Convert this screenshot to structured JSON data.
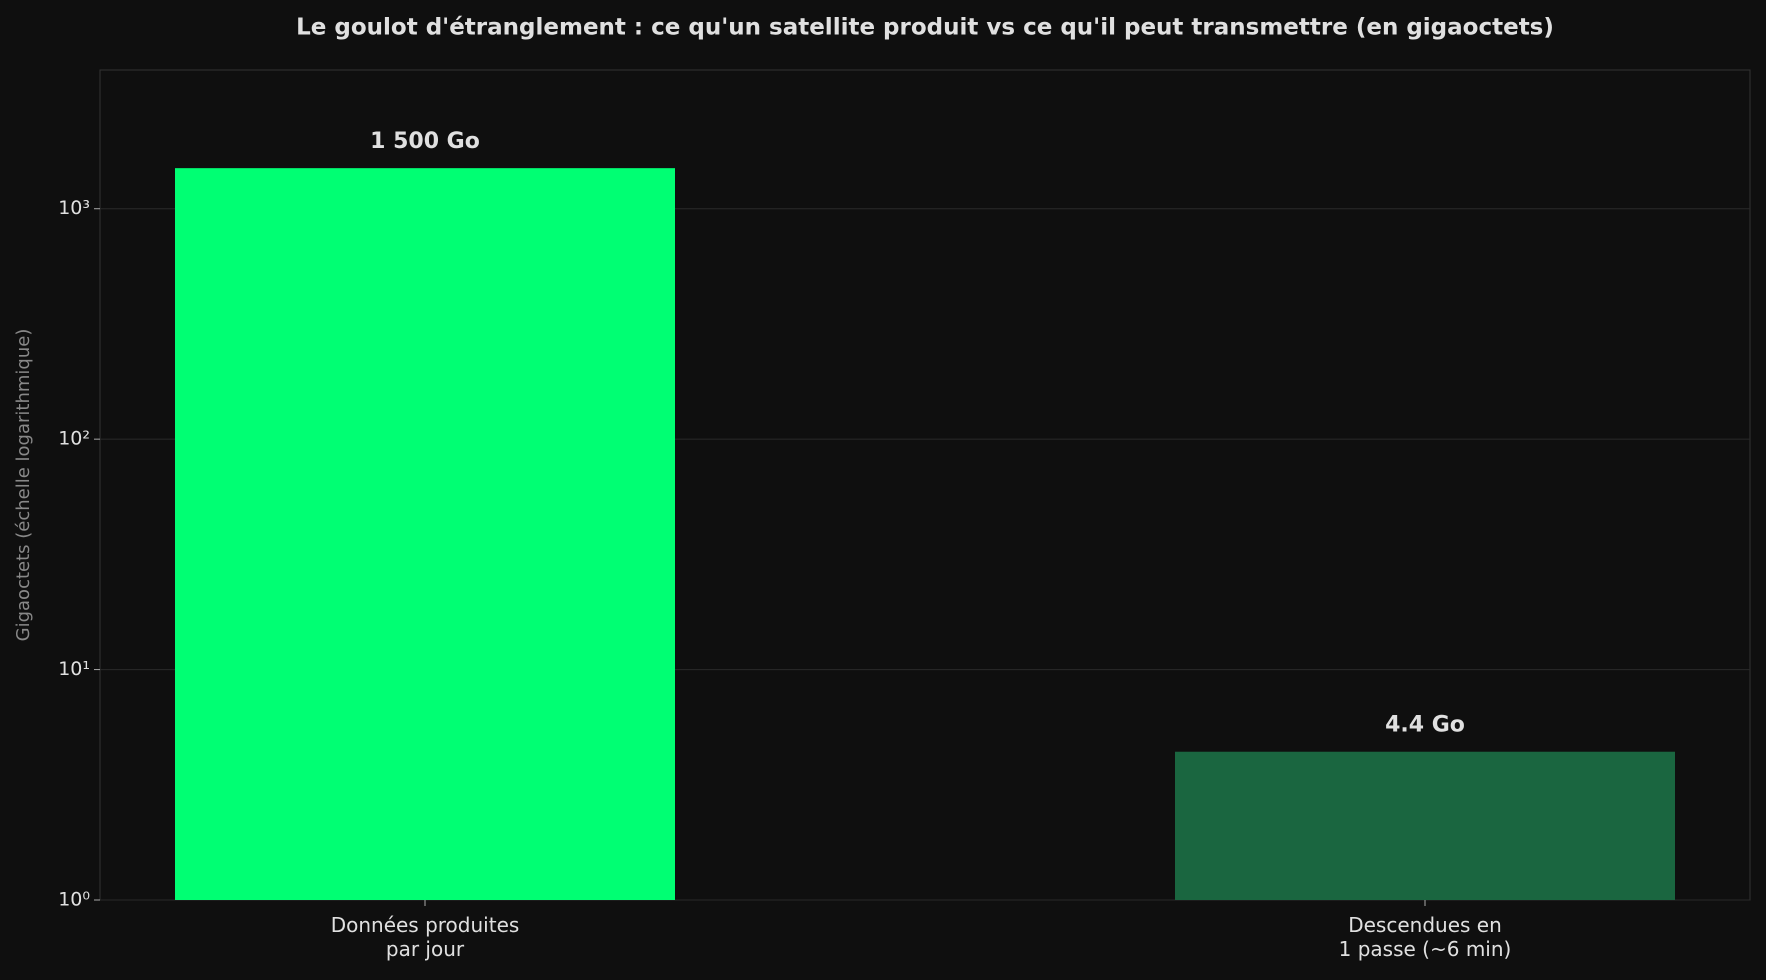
{
  "chart_data": {
    "type": "bar",
    "title": "Le goulot d'étranglement : ce qu'un satellite produit vs ce qu'il peut transmettre (en gigaoctets)",
    "y_label": "Gigaoctets (échelle logarithmique)",
    "categories": [
      "Données produites\npar jour",
      "Descendues en\n1 passe (~6 min)"
    ],
    "values": [
      1500,
      4.4
    ],
    "value_labels": [
      "1 500 Go",
      "4.4 Go"
    ],
    "colors": [
      "#00ff73",
      "#1a6640"
    ],
    "log_scale": true,
    "ylim": [
      1,
      4000
    ],
    "yticks": [
      {
        "value": 1,
        "label": "10⁰"
      },
      {
        "value": 10,
        "label": "10¹"
      },
      {
        "value": 100,
        "label": "10²"
      },
      {
        "value": 1000,
        "label": "10³"
      }
    ],
    "grid": true
  }
}
